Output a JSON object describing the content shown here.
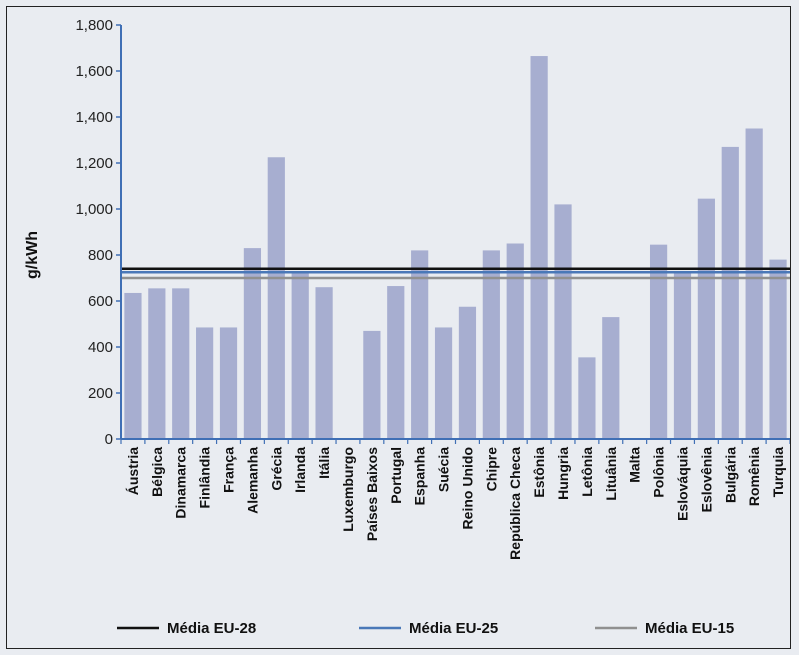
{
  "chart_data": {
    "type": "bar",
    "title": "",
    "xlabel": "",
    "ylabel": "g/kWh",
    "ylim": [
      0,
      1800
    ],
    "yticks": [
      0,
      200,
      400,
      600,
      800,
      1000,
      1200,
      1400,
      1600,
      1800
    ],
    "ytick_labels": [
      "0",
      "200",
      "400",
      "600",
      "800",
      "1,000",
      "1,200",
      "1,400",
      "1,600",
      "1,800"
    ],
    "bar_color": "#a7aed0",
    "grid": false,
    "legend_position": "bottom",
    "categories": [
      "Áustria",
      "Bélgica",
      "Dinamarca",
      "Finlândia",
      "França",
      "Alemanha",
      "Grécia",
      "Irlanda",
      "Itália",
      "Luxemburgo",
      "Países Baixos",
      "Portugal",
      "Espanha",
      "Suécia",
      "Reino Unido",
      "Chipre",
      "República Checa",
      "Estônia",
      "Hungria",
      "Letônia",
      "Lituânia",
      "Malta",
      "Polônia",
      "Eslováquia",
      "Eslovênia",
      "Bulgária",
      "Romênia",
      "Turquia"
    ],
    "values": [
      635,
      655,
      655,
      485,
      485,
      830,
      1225,
      725,
      660,
      0,
      470,
      665,
      820,
      485,
      575,
      820,
      850,
      1665,
      1020,
      355,
      530,
      0,
      845,
      725,
      1045,
      1270,
      1350,
      780
    ],
    "reference_lines": [
      {
        "name": "Média EU-28",
        "value": 740,
        "color": "#111111"
      },
      {
        "name": "Média EU-25",
        "value": 725,
        "color": "#4a78b8"
      },
      {
        "name": "Média EU-15",
        "value": 700,
        "color": "#909090"
      }
    ]
  }
}
